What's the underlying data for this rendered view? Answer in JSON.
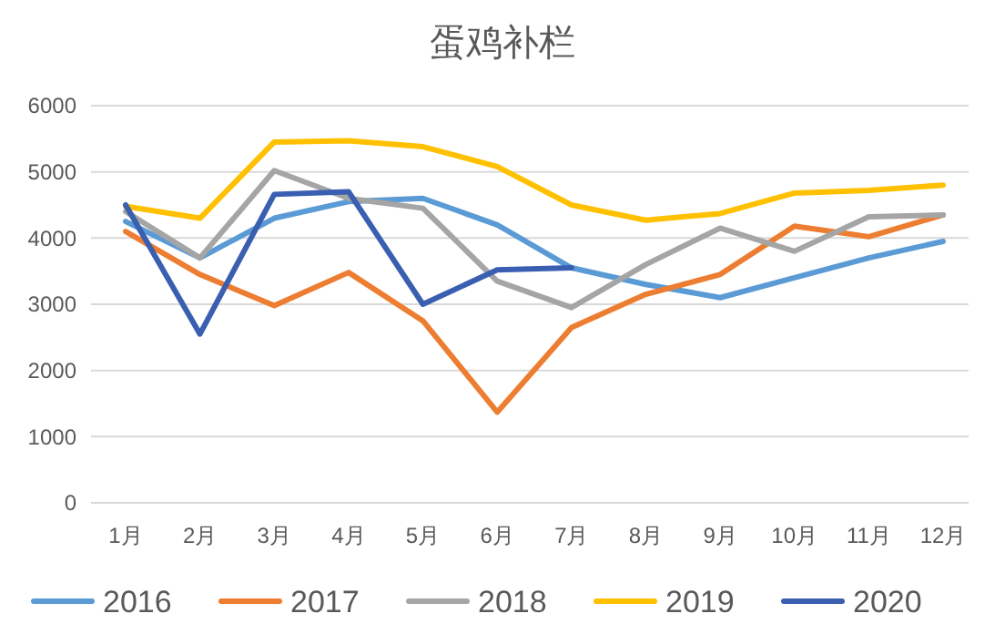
{
  "chart_data": {
    "type": "line",
    "title": "蛋鸡补栏",
    "categories": [
      "1月",
      "2月",
      "3月",
      "4月",
      "5月",
      "6月",
      "7月",
      "8月",
      "9月",
      "10月",
      "11月",
      "12月"
    ],
    "series": [
      {
        "name": "2016",
        "color": "#5b9bd5",
        "values": [
          4250,
          3700,
          4300,
          4550,
          4600,
          4200,
          3550,
          3300,
          3100,
          3400,
          3700,
          3950
        ]
      },
      {
        "name": "2017",
        "color": "#ed7d31",
        "values": [
          4100,
          3450,
          2980,
          3480,
          2750,
          1370,
          2650,
          3150,
          3450,
          4180,
          4020,
          4350
        ]
      },
      {
        "name": "2018",
        "color": "#a5a5a5",
        "values": [
          4400,
          3700,
          5020,
          4600,
          4450,
          3350,
          2950,
          3600,
          4150,
          3800,
          4320,
          4350
        ]
      },
      {
        "name": "2019",
        "color": "#ffc000",
        "values": [
          4480,
          4300,
          5450,
          5470,
          5380,
          5080,
          4500,
          4270,
          4370,
          4680,
          4720,
          4800
        ]
      },
      {
        "name": "2020",
        "color": "#3a5fb0",
        "values": [
          4500,
          2550,
          4660,
          4700,
          3000,
          3520,
          3550,
          null,
          null,
          null,
          null,
          null
        ]
      }
    ],
    "ylim": [
      0,
      6000
    ],
    "yticks": [
      0,
      1000,
      2000,
      3000,
      4000,
      5000,
      6000
    ],
    "grid": "y",
    "legend": "bottom",
    "marker": "none",
    "line_style": "solid"
  }
}
